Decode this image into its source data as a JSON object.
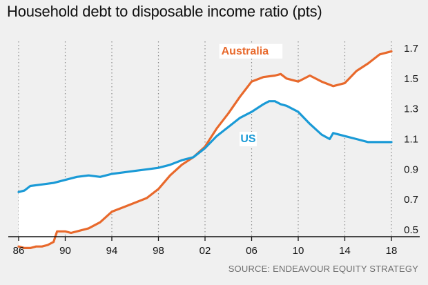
{
  "chart_data": {
    "type": "line",
    "title": "Household debt to disposable income ratio (pts)",
    "source": "SOURCE: ENDEAVOUR EQUITY STRATEGY",
    "xlabel": "",
    "ylabel": "",
    "xlim": [
      1986,
      2018
    ],
    "ylim": [
      0.4,
      1.7
    ],
    "x_ticks": [
      1986,
      1990,
      1994,
      1998,
      2002,
      2006,
      2010,
      2014,
      2018
    ],
    "x_tick_labels": [
      "86",
      "90",
      "94",
      "98",
      "02",
      "06",
      "10",
      "14",
      "18"
    ],
    "y_ticks": [
      0.5,
      0.7,
      0.9,
      1.1,
      1.3,
      1.5,
      1.7
    ],
    "y_tick_labels": [
      "0.5",
      "0.7",
      "0.9",
      "1.1",
      "1.3",
      "1.5",
      "1.7"
    ],
    "grid": {
      "x": true,
      "y": false,
      "style": "dotted"
    },
    "series": [
      {
        "name": "Australia",
        "color": "#e8692c",
        "x": [
          1986,
          1986.5,
          1987,
          1987.5,
          1988,
          1988.5,
          1989,
          1989.3,
          1989.5,
          1990,
          1990.5,
          1991,
          1992,
          1993,
          1994,
          1995,
          1996,
          1997,
          1998,
          1999,
          2000,
          2001,
          2002,
          2003,
          2004,
          2005,
          2006,
          2007,
          2008,
          2008.5,
          2009,
          2010,
          2011,
          2012,
          2013,
          2014,
          2015,
          2016,
          2017,
          2018
        ],
        "values": [
          0.39,
          0.38,
          0.38,
          0.39,
          0.39,
          0.4,
          0.42,
          0.49,
          0.49,
          0.49,
          0.48,
          0.49,
          0.51,
          0.55,
          0.62,
          0.65,
          0.68,
          0.71,
          0.77,
          0.86,
          0.93,
          0.98,
          1.05,
          1.17,
          1.27,
          1.38,
          1.48,
          1.51,
          1.52,
          1.53,
          1.5,
          1.48,
          1.52,
          1.48,
          1.45,
          1.47,
          1.55,
          1.6,
          1.66,
          1.68
        ]
      },
      {
        "name": "US",
        "color": "#1a9ad6",
        "x": [
          1986,
          1986.5,
          1987,
          1988,
          1989,
          1990,
          1991,
          1992,
          1993,
          1994,
          1995,
          1996,
          1997,
          1998,
          1999,
          2000,
          2001,
          2002,
          2003,
          2004,
          2005,
          2006,
          2007,
          2007.5,
          2008,
          2008.5,
          2009,
          2010,
          2011,
          2012,
          2012.7,
          2013,
          2014,
          2015,
          2016,
          2017,
          2018
        ],
        "values": [
          0.75,
          0.76,
          0.79,
          0.8,
          0.81,
          0.83,
          0.85,
          0.86,
          0.85,
          0.87,
          0.88,
          0.89,
          0.9,
          0.91,
          0.93,
          0.96,
          0.98,
          1.04,
          1.12,
          1.18,
          1.24,
          1.28,
          1.33,
          1.35,
          1.35,
          1.33,
          1.32,
          1.28,
          1.2,
          1.13,
          1.1,
          1.14,
          1.12,
          1.1,
          1.08,
          1.08,
          1.08
        ]
      }
    ],
    "annotations": [
      {
        "text": "Australia",
        "series": "Australia"
      },
      {
        "text": "US",
        "series": "US"
      }
    ]
  }
}
